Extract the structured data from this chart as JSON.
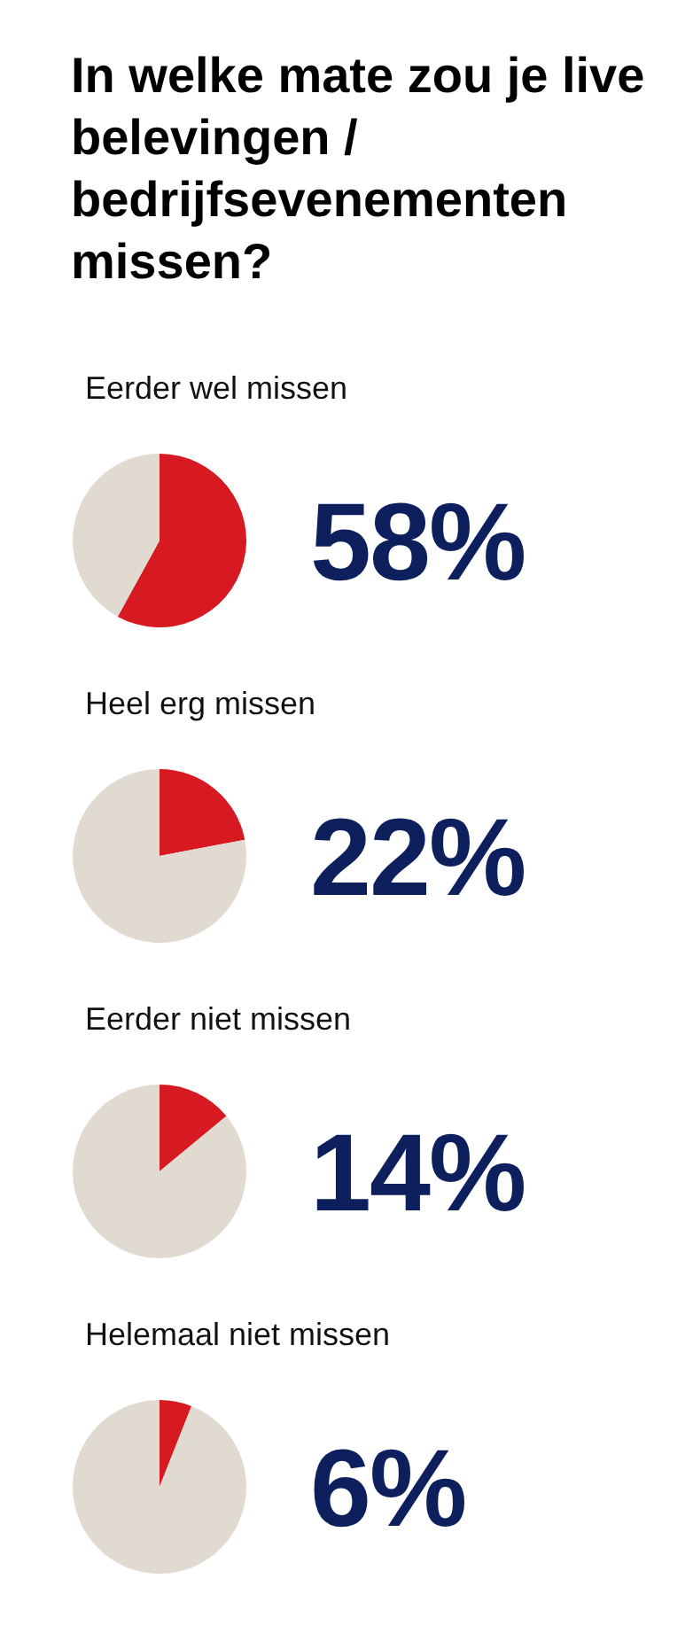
{
  "chart_data": [
    {
      "type": "pie",
      "title": "In welke mate zou je live belevingen / bedrijfsevenementen missen?",
      "categories": [
        "Eerder wel missen",
        null
      ],
      "values": [
        58,
        42
      ],
      "colors": [
        "#d71a21",
        "#e1dad0"
      ],
      "value_labels": [
        "58%",
        null
      ]
    },
    {
      "type": "pie",
      "categories": [
        "Heel erg missen",
        null
      ],
      "values": [
        22,
        78
      ],
      "colors": [
        "#d71a21",
        "#e1dad0"
      ],
      "value_labels": [
        "22%",
        null
      ]
    },
    {
      "type": "pie",
      "categories": [
        "Eerder niet missen",
        null
      ],
      "values": [
        14,
        86
      ],
      "colors": [
        "#d71a21",
        "#e1dad0"
      ],
      "value_labels": [
        "14%",
        null
      ]
    },
    {
      "type": "pie",
      "categories": [
        "Helemaal niet missen",
        null
      ],
      "values": [
        6,
        94
      ],
      "colors": [
        "#d71a21",
        "#e1dad0"
      ],
      "value_labels": [
        "6%",
        null
      ]
    }
  ]
}
